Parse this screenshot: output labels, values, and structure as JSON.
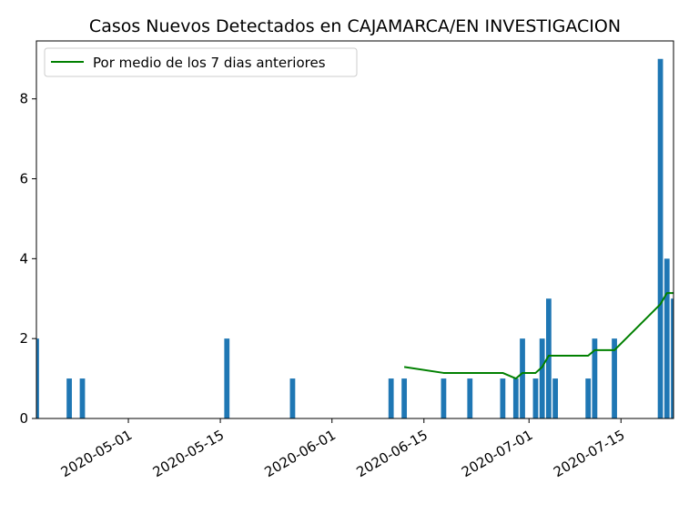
{
  "chart_data": {
    "type": "bar",
    "title": "Casos Nuevos Detectados en CAJAMARCA/EN INVESTIGACION",
    "xlabel": "",
    "ylabel": "",
    "x_range": [
      "2020-04-17",
      "2020-07-23"
    ],
    "ylim": [
      0,
      9.45
    ],
    "grid": false,
    "legend_position": "top-left",
    "x_ticks": [
      "2020-05-01",
      "2020-05-15",
      "2020-06-01",
      "2020-06-15",
      "2020-07-01",
      "2020-07-15"
    ],
    "y_ticks": [
      0,
      2,
      4,
      6,
      8
    ],
    "series": [
      {
        "type": "bar",
        "color": "#1f77b4",
        "x": [
          "2020-04-17",
          "2020-04-22",
          "2020-04-24",
          "2020-05-16",
          "2020-05-26",
          "2020-06-10",
          "2020-06-12",
          "2020-06-18",
          "2020-06-22",
          "2020-06-27",
          "2020-06-29",
          "2020-06-30",
          "2020-07-02",
          "2020-07-03",
          "2020-07-04",
          "2020-07-05",
          "2020-07-10",
          "2020-07-11",
          "2020-07-14",
          "2020-07-21",
          "2020-07-22",
          "2020-07-23"
        ],
        "values": [
          2,
          1,
          1,
          2,
          1,
          1,
          1,
          1,
          1,
          1,
          1,
          2,
          1,
          2,
          3,
          1,
          1,
          2,
          2,
          9,
          4,
          3
        ]
      },
      {
        "type": "line",
        "name": "Por medio de los 7 dias anteriores",
        "color": "#008000",
        "x": [
          "2020-06-12",
          "2020-06-18",
          "2020-06-22",
          "2020-06-27",
          "2020-06-29",
          "2020-06-30",
          "2020-07-02",
          "2020-07-03",
          "2020-07-04",
          "2020-07-05",
          "2020-07-10",
          "2020-07-11",
          "2020-07-14",
          "2020-07-21",
          "2020-07-22",
          "2020-07-23"
        ],
        "values": [
          1.29,
          1.14,
          1.14,
          1.14,
          1.0,
          1.14,
          1.14,
          1.29,
          1.57,
          1.57,
          1.57,
          1.71,
          1.71,
          2.86,
          3.14,
          3.14
        ]
      }
    ]
  }
}
